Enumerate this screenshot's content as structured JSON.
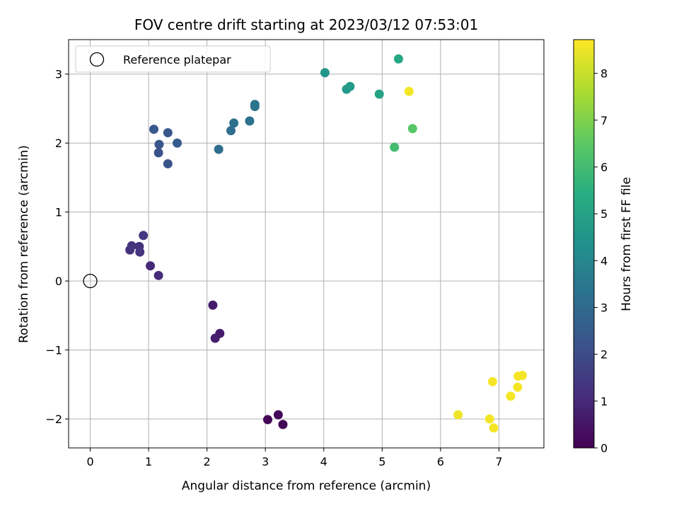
{
  "chart_data": {
    "type": "scatter",
    "title": "FOV centre drift starting at 2023/03/12 07:53:01",
    "xlabel": "Angular distance from reference (arcmin)",
    "ylabel": "Rotation from reference (arcmin)",
    "xlim": [
      -0.37,
      7.77
    ],
    "ylim": [
      -2.42,
      3.5
    ],
    "xticks": [
      0,
      1,
      2,
      3,
      4,
      5,
      6,
      7
    ],
    "yticks": [
      -2,
      -1,
      0,
      1,
      2,
      3
    ],
    "xtick_labels": [
      "0",
      "1",
      "2",
      "3",
      "4",
      "5",
      "6",
      "7"
    ],
    "ytick_labels": [
      "−2",
      "−1",
      "0",
      "1",
      "2",
      "3"
    ],
    "grid": true,
    "legend": {
      "placement": "top-left",
      "entries": [
        {
          "label": "Reference platepar",
          "marker": "hollow-circle"
        }
      ]
    },
    "reference_point": {
      "x": 0,
      "y": 0
    },
    "colorbar": {
      "label": "Hours from first FF file",
      "range": [
        0,
        8.72
      ],
      "ticks": [
        0,
        1,
        2,
        3,
        4,
        5,
        6,
        7,
        8
      ],
      "tick_labels": [
        "0",
        "1",
        "2",
        "3",
        "4",
        "5",
        "6",
        "7",
        "8"
      ],
      "colormap": "viridis"
    },
    "series": [
      {
        "x": [
          3.04,
          3.22,
          3.3,
          2.1,
          2.14,
          2.22,
          1.03,
          1.17,
          0.68,
          0.71,
          0.84,
          0.85,
          0.91,
          1.17,
          1.33,
          1.18,
          1.09,
          1.33,
          1.49,
          2.2,
          2.41,
          2.46,
          2.73,
          2.82,
          2.82,
          4.02,
          4.39,
          4.45,
          4.95,
          5.28,
          5.21,
          5.52,
          5.46,
          6.3,
          6.84,
          6.89,
          6.91,
          7.2,
          7.32,
          7.33,
          7.4
        ],
        "y": [
          -2.01,
          -1.94,
          -2.08,
          -0.35,
          -0.83,
          -0.76,
          0.22,
          0.08,
          0.45,
          0.51,
          0.5,
          0.42,
          0.66,
          1.86,
          1.7,
          1.98,
          2.2,
          2.15,
          2.0,
          1.91,
          2.18,
          2.29,
          2.32,
          2.53,
          2.56,
          3.02,
          2.78,
          2.82,
          2.71,
          3.22,
          1.94,
          2.21,
          2.75,
          -1.94,
          -2.0,
          -1.46,
          -2.13,
          -1.67,
          -1.54,
          -1.38,
          -1.37
        ],
        "hours": [
          0.05,
          0.15,
          0.1,
          0.65,
          0.75,
          0.7,
          1.0,
          1.1,
          1.2,
          1.3,
          1.25,
          1.35,
          1.4,
          2.2,
          2.25,
          2.3,
          2.35,
          2.4,
          2.45,
          3.1,
          3.15,
          3.2,
          3.25,
          3.3,
          3.35,
          4.6,
          4.7,
          4.75,
          5.0,
          5.2,
          6.0,
          6.4,
          8.6,
          8.5,
          8.6,
          8.6,
          8.6,
          8.6,
          8.6,
          8.6,
          8.6
        ]
      }
    ]
  }
}
